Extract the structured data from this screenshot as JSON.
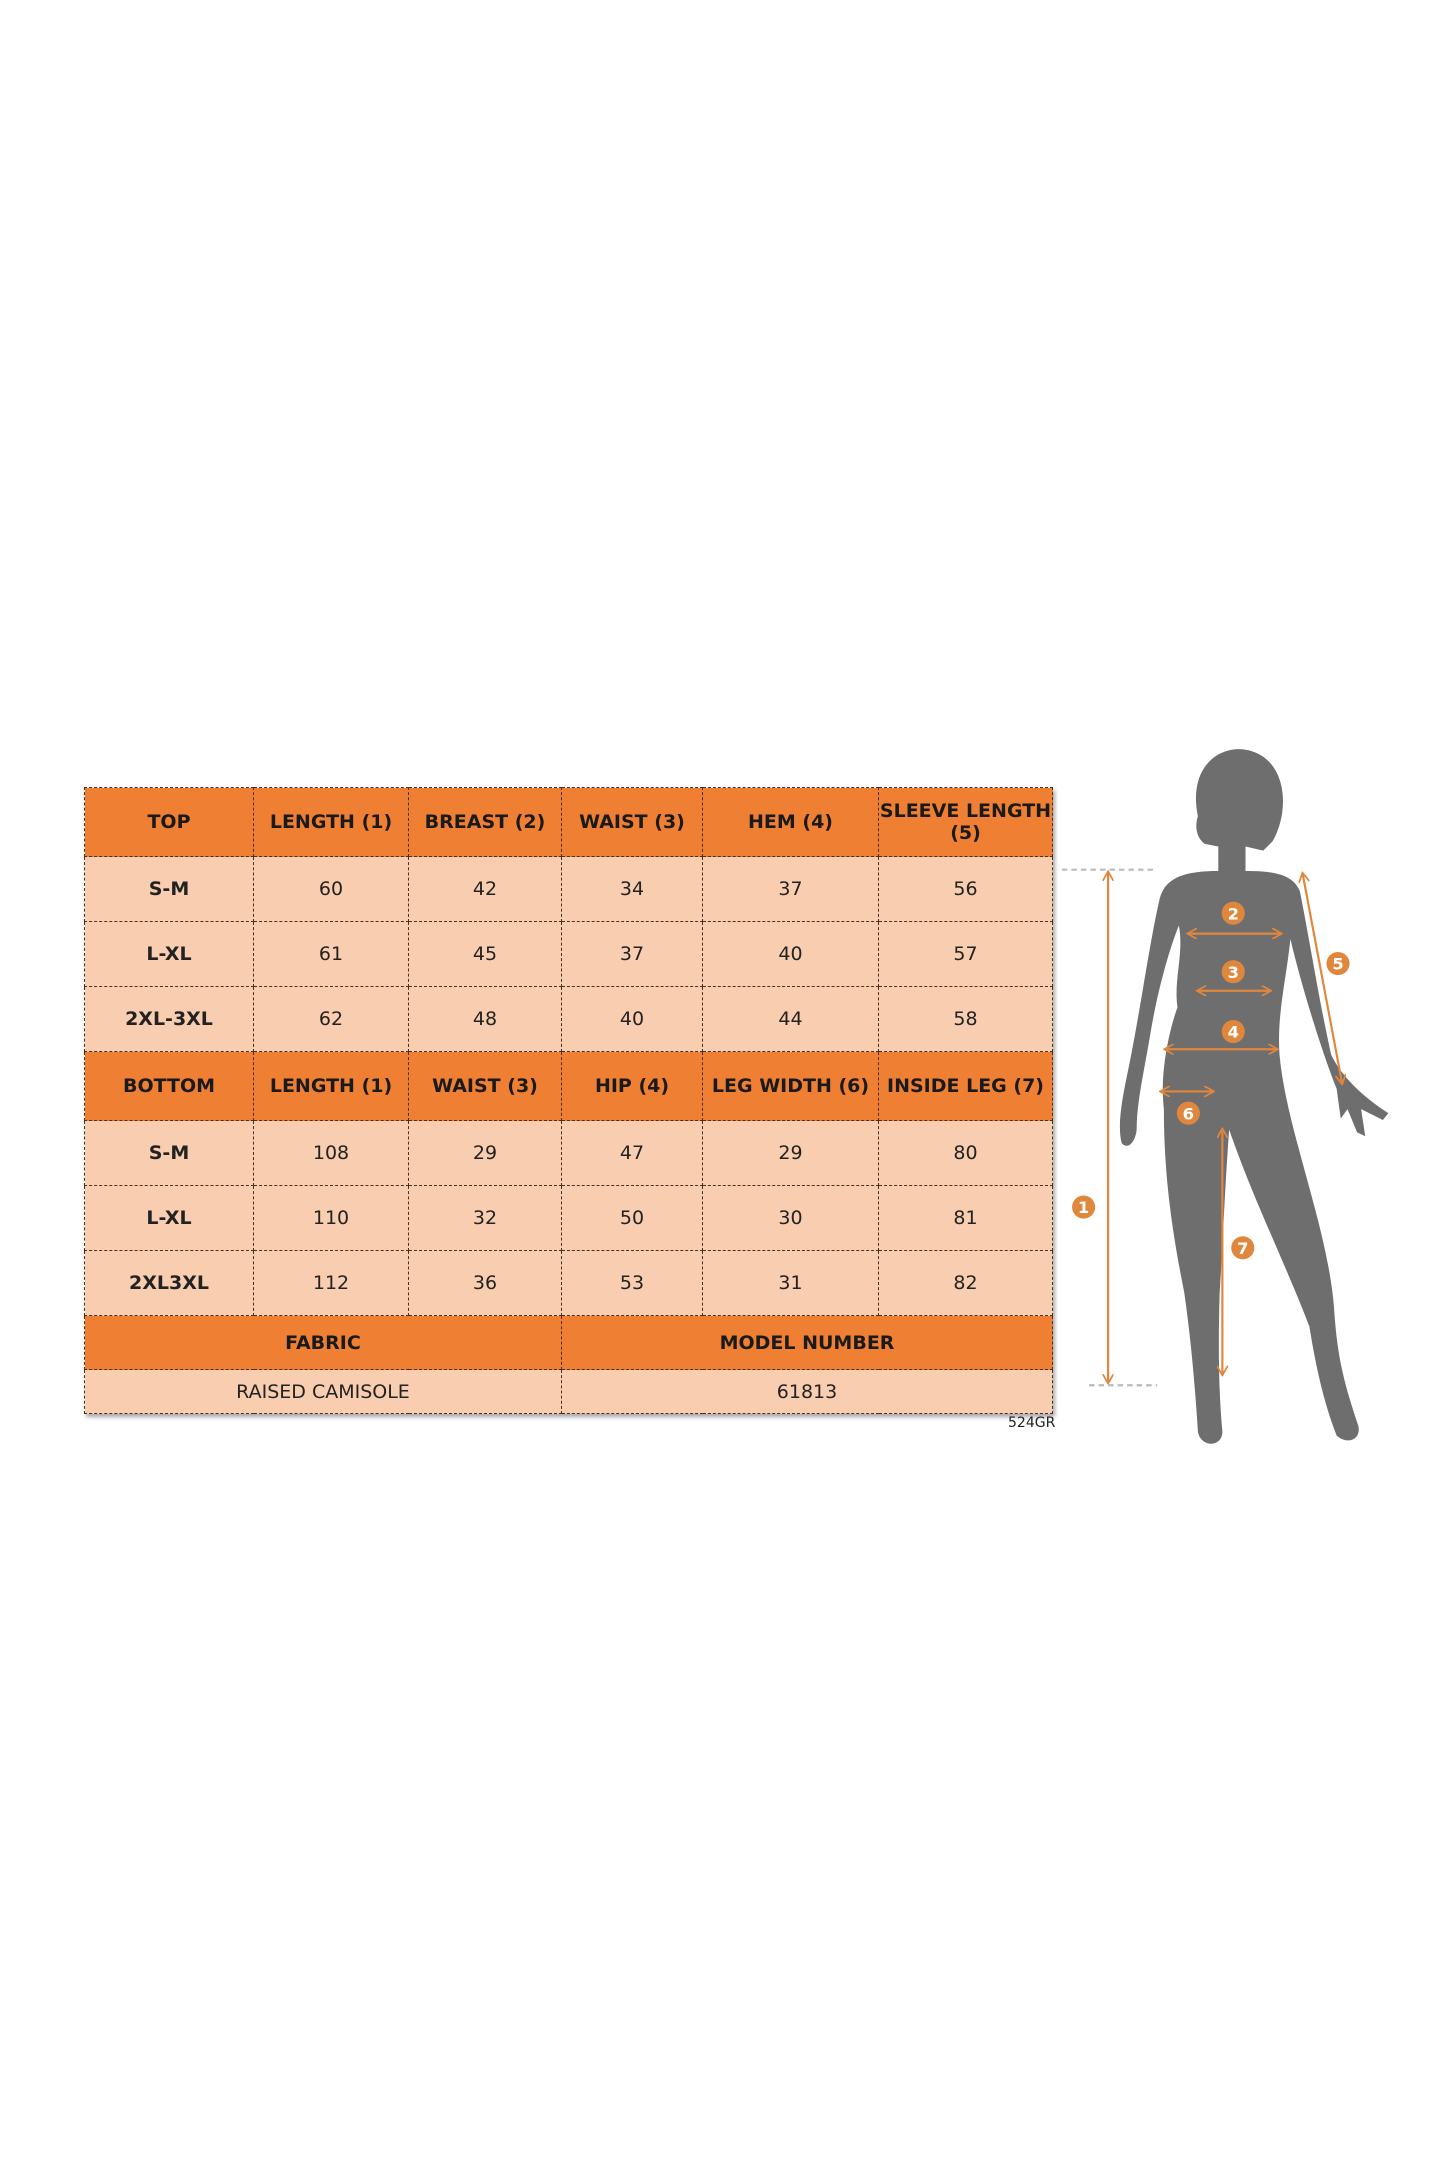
{
  "top_table": {
    "headers": [
      "TOP",
      "LENGTH (1)",
      "BREAST (2)",
      "WAIST (3)",
      "HEM (4)",
      "SLEEVE LENGTH (5)"
    ],
    "rows": [
      [
        "S-M",
        "60",
        "42",
        "34",
        "37",
        "56"
      ],
      [
        "L-XL",
        "61",
        "45",
        "37",
        "40",
        "57"
      ],
      [
        "2XL-3XL",
        "62",
        "48",
        "40",
        "44",
        "58"
      ]
    ]
  },
  "bottom_table": {
    "headers": [
      "BOTTOM",
      "LENGTH (1)",
      "WAIST (3)",
      "HIP (4)",
      "LEG WIDTH (6)",
      "INSIDE LEG (7)"
    ],
    "rows": [
      [
        "S-M",
        "108",
        "29",
        "47",
        "29",
        "80"
      ],
      [
        "L-XL",
        "110",
        "32",
        "50",
        "30",
        "81"
      ],
      [
        "2XL3XL",
        "112",
        "36",
        "53",
        "31",
        "82"
      ]
    ]
  },
  "footer": {
    "fabric_label": "FABRIC",
    "fabric_value": "RAISED CAMISOLE",
    "model_label": "MODEL NUMBER",
    "model_value": "61813"
  },
  "code": "524GR",
  "figure_markers": [
    "1",
    "2",
    "3",
    "4",
    "5",
    "6",
    "7"
  ],
  "colors": {
    "header": "#ef7f33",
    "cell": "#f8cdb0",
    "silhouette": "#6e6e6e",
    "arrow": "#e0873e"
  }
}
